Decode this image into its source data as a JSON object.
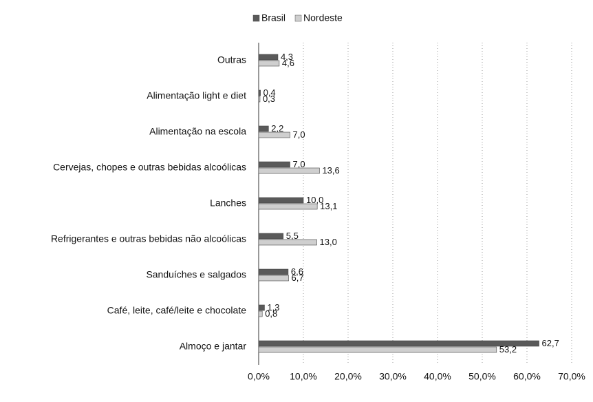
{
  "chart_data": {
    "type": "barh",
    "categories": [
      "Outras",
      "Alimentação light e diet",
      "Alimentação na escola",
      "Cervejas, chopes e outras bebidas alcoólicas",
      "Lanches",
      "Refrigerantes e outras bebidas não alcoólicas",
      "Sanduíches e salgados",
      "Café, leite, café/leite e chocolate",
      "Almoço e jantar"
    ],
    "series": [
      {
        "name": "Brasil",
        "color": "#5a5a5a",
        "values": [
          4.3,
          0.4,
          2.2,
          7.0,
          10.0,
          5.5,
          6.6,
          1.3,
          62.7
        ],
        "value_labels": [
          "4,3",
          "0,4",
          "2,2",
          "7,0",
          "10,0",
          "5,5",
          "6,6",
          "1,3",
          "62,7"
        ]
      },
      {
        "name": "Nordeste",
        "color": "#cfcfcf",
        "values": [
          4.6,
          0.3,
          7.0,
          13.6,
          13.1,
          13.0,
          6.7,
          0.8,
          53.2
        ],
        "value_labels": [
          "4,6",
          "0,3",
          "7,0",
          "13,6",
          "13,1",
          "13,0",
          "6,7",
          "0,8",
          "53,2"
        ]
      }
    ],
    "xlim": [
      0,
      70
    ],
    "xticks": [
      {
        "value": 0,
        "label": "0,0%"
      },
      {
        "value": 10,
        "label": "10,0%"
      },
      {
        "value": 20,
        "label": "20,0%"
      },
      {
        "value": 30,
        "label": "30,0%"
      },
      {
        "value": 40,
        "label": "40,0%"
      },
      {
        "value": 50,
        "label": "50,0%"
      },
      {
        "value": 60,
        "label": "60,0%"
      },
      {
        "value": 70,
        "label": "70,0%"
      }
    ],
    "grid": true,
    "legend": "top"
  }
}
